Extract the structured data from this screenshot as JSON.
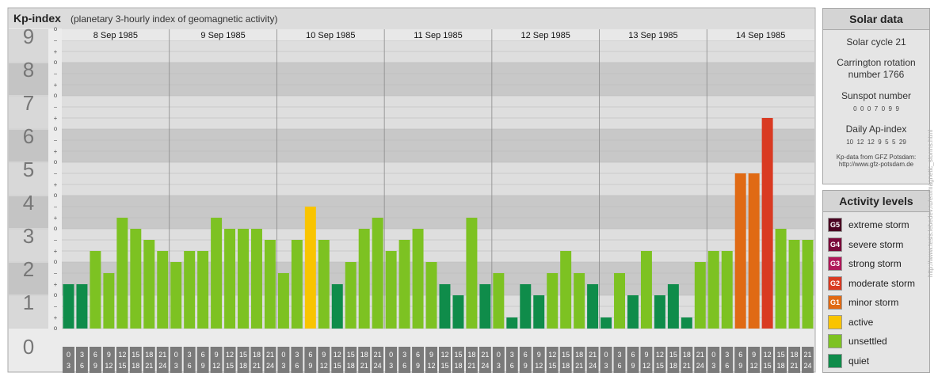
{
  "header": {
    "title": "Kp-index",
    "subtitle": "(planetary 3-hourly index of geomagnetic activity)"
  },
  "chart_data": {
    "type": "bar",
    "title": "Kp-index",
    "subtitle": "(planetary 3-hourly index of geomagnetic activity)",
    "ylim": [
      0,
      9
    ],
    "y_ticks": [
      "0",
      "1",
      "2",
      "3",
      "4",
      "5",
      "6",
      "7",
      "8",
      "9"
    ],
    "subdiv_labels": [
      "o",
      "+",
      "−"
    ],
    "days": [
      "8 Sep 1985",
      "9 Sep 1985",
      "10 Sep 1985",
      "11 Sep 1985",
      "12 Sep 1985",
      "13 Sep 1985",
      "14 Sep 1985"
    ],
    "interval_top": [
      "0",
      "3",
      "6",
      "9",
      "12",
      "15",
      "18",
      "21"
    ],
    "interval_bottom": [
      "3",
      "6",
      "9",
      "12",
      "15",
      "18",
      "21",
      "24"
    ],
    "values": [
      1.333,
      1.333,
      2.333,
      1.667,
      3.333,
      3.0,
      2.667,
      2.333,
      2.0,
      2.333,
      2.333,
      3.333,
      3.0,
      3.0,
      3.0,
      2.667,
      1.667,
      2.667,
      3.667,
      2.667,
      1.333,
      2.0,
      3.0,
      3.333,
      2.333,
      2.667,
      3.0,
      2.0,
      1.333,
      1.0,
      3.333,
      1.333,
      1.667,
      0.333,
      1.333,
      1.0,
      1.667,
      2.333,
      1.667,
      1.333,
      0.333,
      1.667,
      1.0,
      2.333,
      1.0,
      1.333,
      0.333,
      2.0,
      2.333,
      2.333,
      4.667,
      4.667,
      6.333,
      3.0,
      2.667,
      2.667
    ],
    "colors": {
      "quiet": "#0f8c4a",
      "unsettled": "#7dc222",
      "active": "#f9c400",
      "G1": "#e06a14",
      "G2": "#d93a22",
      "G3": "#b0185a",
      "G4": "#7a0a3a",
      "G5": "#4a0422"
    }
  },
  "solar": {
    "title": "Solar data",
    "cycle": "Solar cycle 21",
    "carrington_1": "Carrington rotation",
    "carrington_2": "number 1766",
    "sunspot_title": "Sunspot number",
    "sunspot_values": "0  0  0  7  0  9  9",
    "ap_title": "Daily Ap-index",
    "ap_values": "10  12  12  9  5  5  29",
    "source_1": "Kp-data from GFZ Potsdam:",
    "source_2": "http://www.gfz-potsdam.de"
  },
  "levels": {
    "title": "Activity levels",
    "items": [
      {
        "badge": "G5",
        "label": "extreme storm",
        "color": "#4a0422"
      },
      {
        "badge": "G4",
        "label": "severe storm",
        "color": "#7a0a3a"
      },
      {
        "badge": "G3",
        "label": "strong storm",
        "color": "#b0185a"
      },
      {
        "badge": "G2",
        "label": "moderate storm",
        "color": "#d93a22"
      },
      {
        "badge": "G1",
        "label": "minor storm",
        "color": "#e06a14"
      },
      {
        "badge": "",
        "label": "active",
        "color": "#f9c400"
      },
      {
        "badge": "",
        "label": "unsettled",
        "color": "#7dc222"
      },
      {
        "badge": "",
        "label": "quiet",
        "color": "#0f8c4a"
      }
    ]
  },
  "credit": "http://www.tesis.lebedev.ru/en/magnetic_storms.html"
}
